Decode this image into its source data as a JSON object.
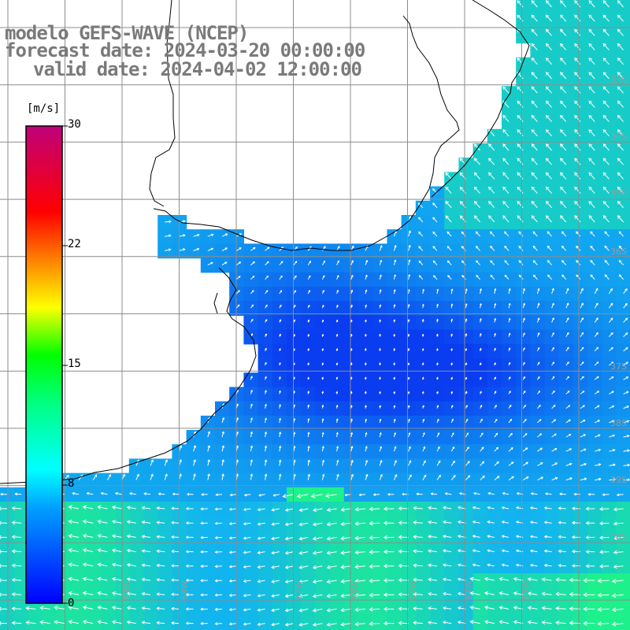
{
  "title": {
    "model": "modelo GEFS-WAVE (NCEP)",
    "forecast_date": "forecast date: 2024-03-20 00:00:00",
    "valid_date": "valid date: 2024-04-02 12:00:00"
  },
  "colorbar": {
    "unit": "[m/s]",
    "ticks": [
      "30",
      "22",
      "15",
      "8",
      "0"
    ]
  },
  "grid_labels": {
    "lat": [
      "33S",
      "34S",
      "35S",
      "36S",
      "37S",
      "38S",
      "39S",
      "40S"
    ],
    "lon": [
      "59W",
      "58W",
      "57W",
      "56W",
      "55W",
      "54W",
      "53W"
    ]
  },
  "colors": {
    "ocean_calm": "#0a3cf0",
    "ocean_mid": "#12b4f0",
    "ocean_strong": "#1ef08c",
    "land": "#ffffff",
    "grid": "#8c8c8c",
    "coast": "#000000",
    "vectors": "#ffffff",
    "title_text": "#7a7a7a"
  }
}
